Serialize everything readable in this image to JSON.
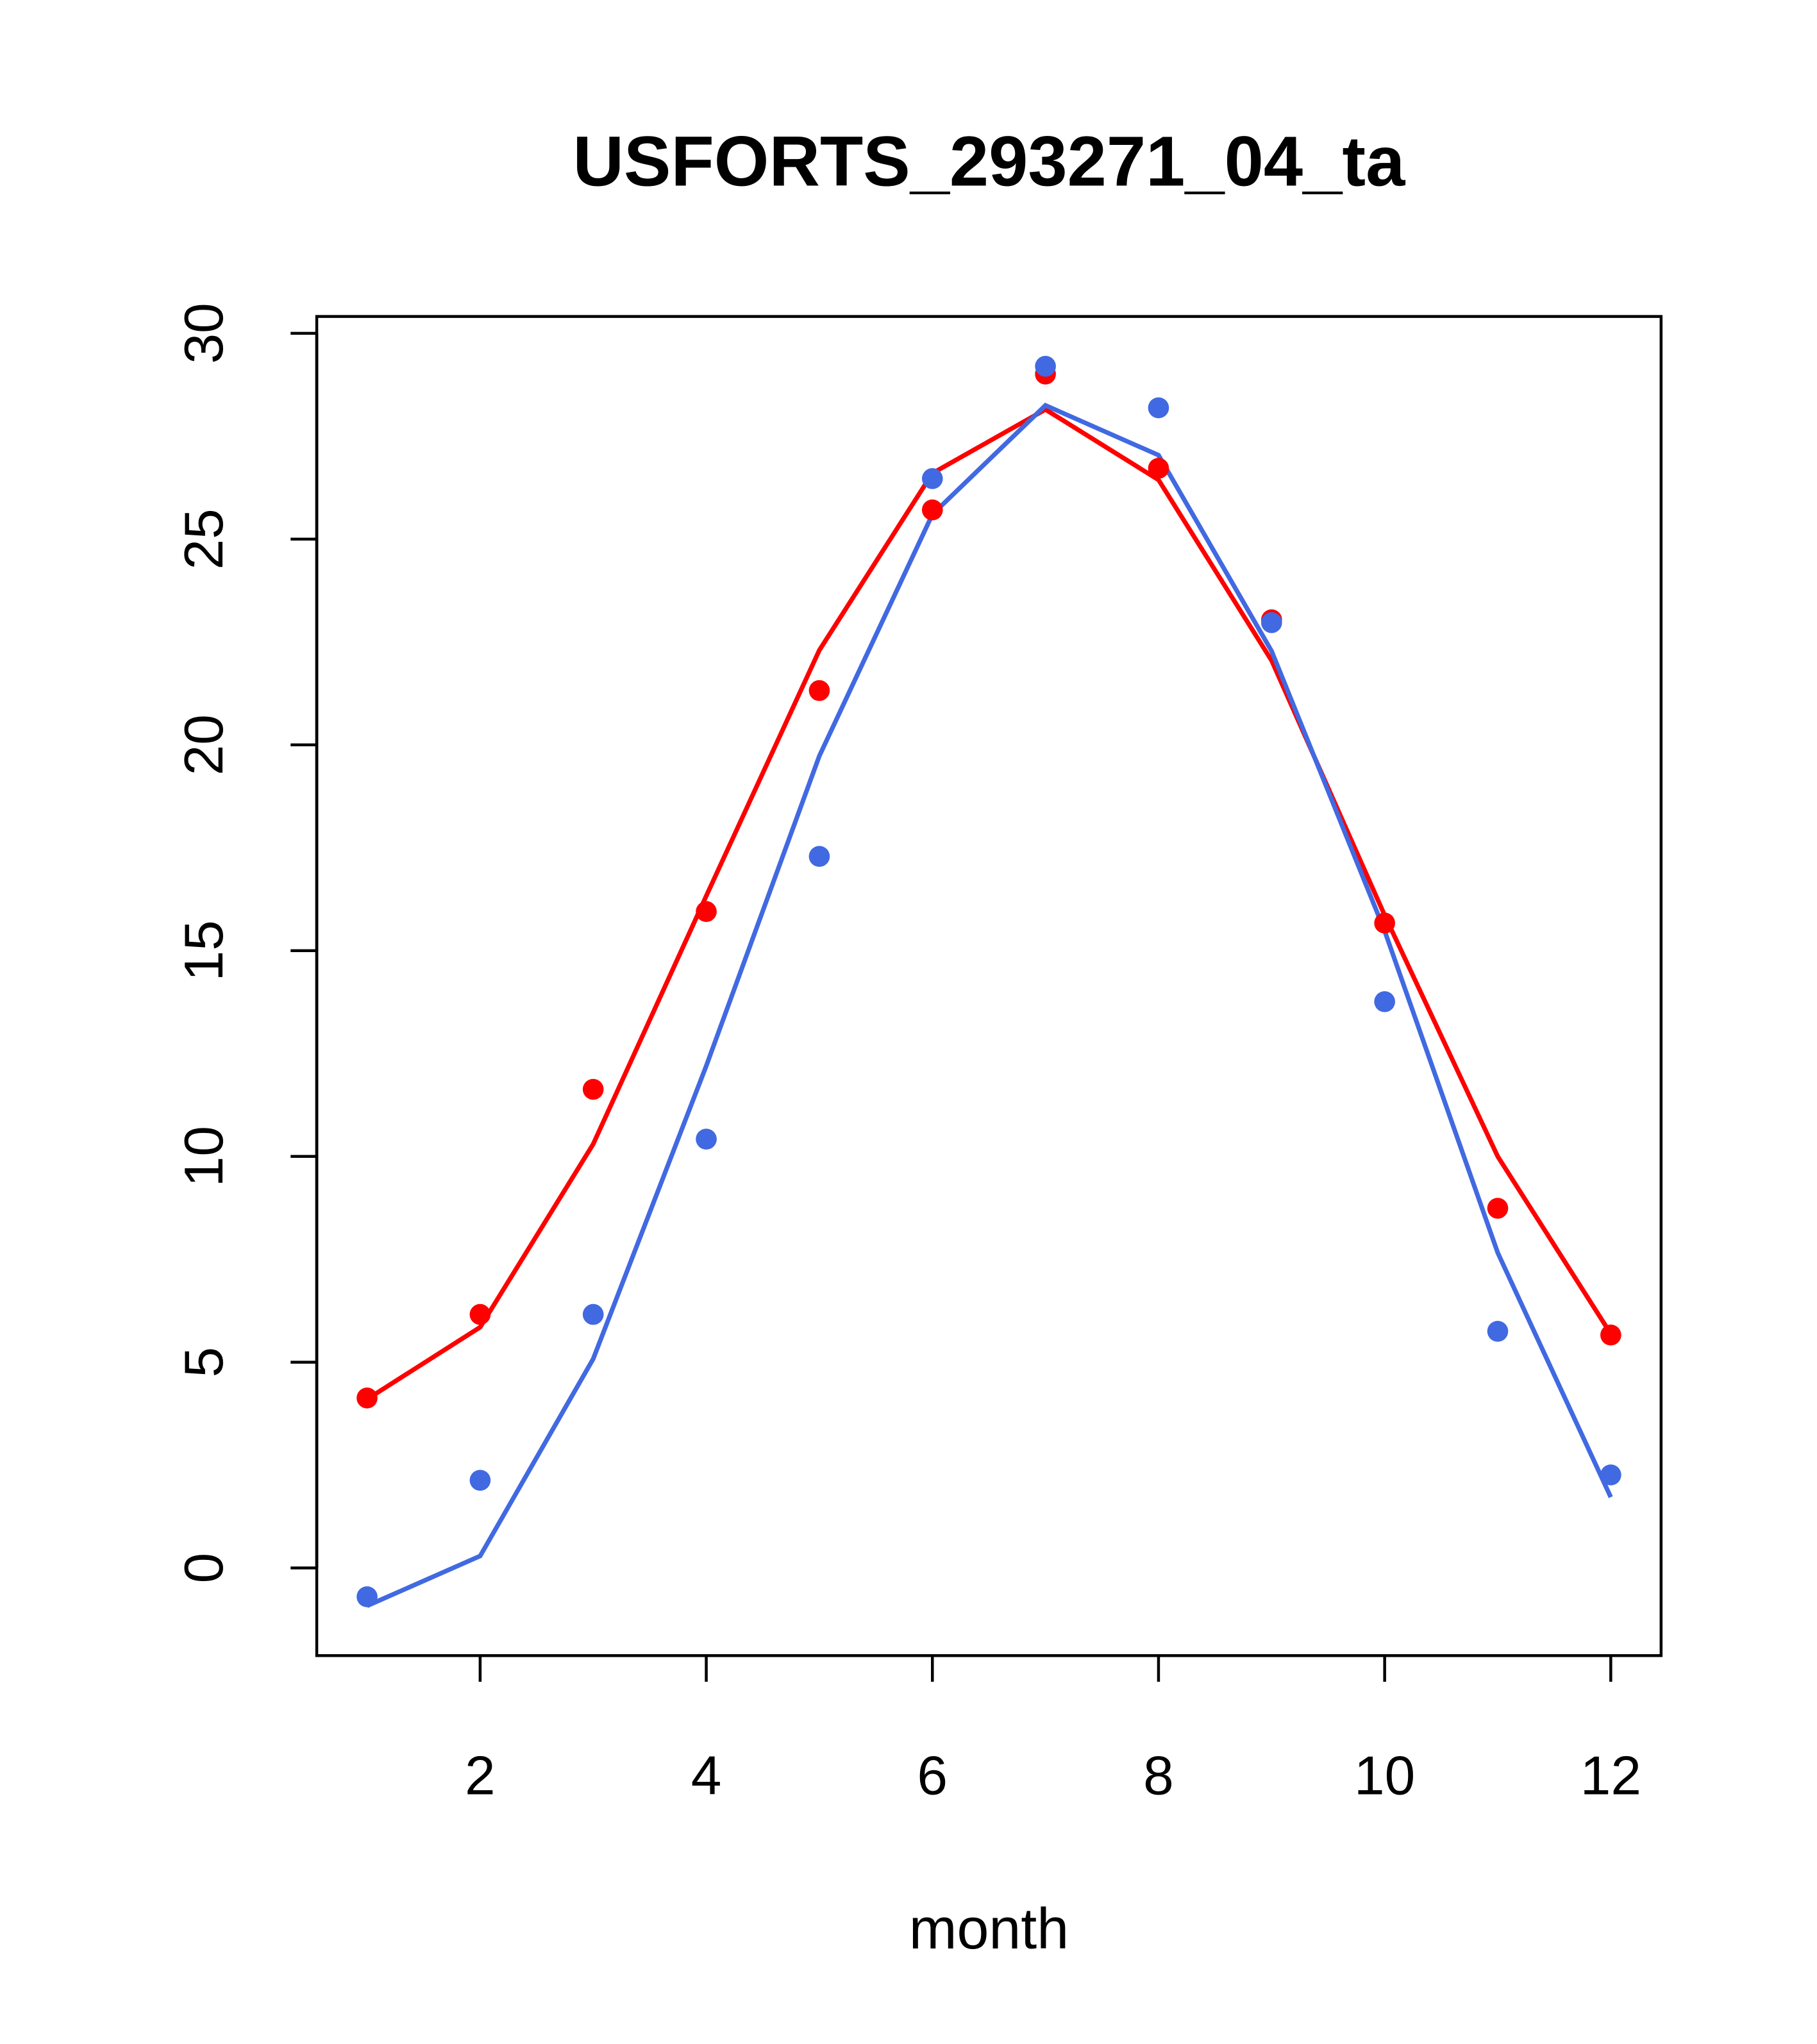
{
  "chart_data": {
    "type": "line",
    "title": "USFORTS_293271_04_ta",
    "xlabel": "month",
    "ylabel": "",
    "xlim": [
      0.555,
      12.445
    ],
    "ylim": [
      -2.13,
      30.41
    ],
    "xticks": [
      2,
      4,
      6,
      8,
      10,
      12
    ],
    "yticks": [
      0,
      5,
      10,
      15,
      20,
      25,
      30
    ],
    "grid": false,
    "x": [
      1,
      2,
      3,
      4,
      5,
      6,
      7,
      8,
      9,
      10,
      11,
      12
    ],
    "series": [
      {
        "name": "red-points",
        "kind": "points",
        "color": "#ff0000",
        "values": [
          4.13,
          6.16,
          11.63,
          15.95,
          21.32,
          25.71,
          29.01,
          26.72,
          23.04,
          15.67,
          8.74,
          5.66
        ]
      },
      {
        "name": "red-line",
        "kind": "line",
        "color": "#ff0000",
        "values": [
          4.1,
          5.85,
          10.3,
          16.33,
          22.3,
          26.6,
          28.15,
          26.44,
          22.05,
          15.86,
          10.0,
          5.69
        ]
      },
      {
        "name": "blue-points",
        "kind": "points",
        "color": "#4169e1",
        "values": [
          -0.7,
          2.13,
          6.16,
          10.42,
          17.29,
          26.47,
          29.2,
          28.19,
          22.97,
          13.76,
          5.75,
          2.26
        ]
      },
      {
        "name": "blue-line",
        "kind": "line",
        "color": "#4169e1",
        "values": [
          -0.92,
          0.29,
          5.08,
          12.2,
          19.73,
          25.6,
          28.25,
          27.04,
          22.28,
          15.48,
          7.66,
          1.72
        ]
      }
    ]
  }
}
